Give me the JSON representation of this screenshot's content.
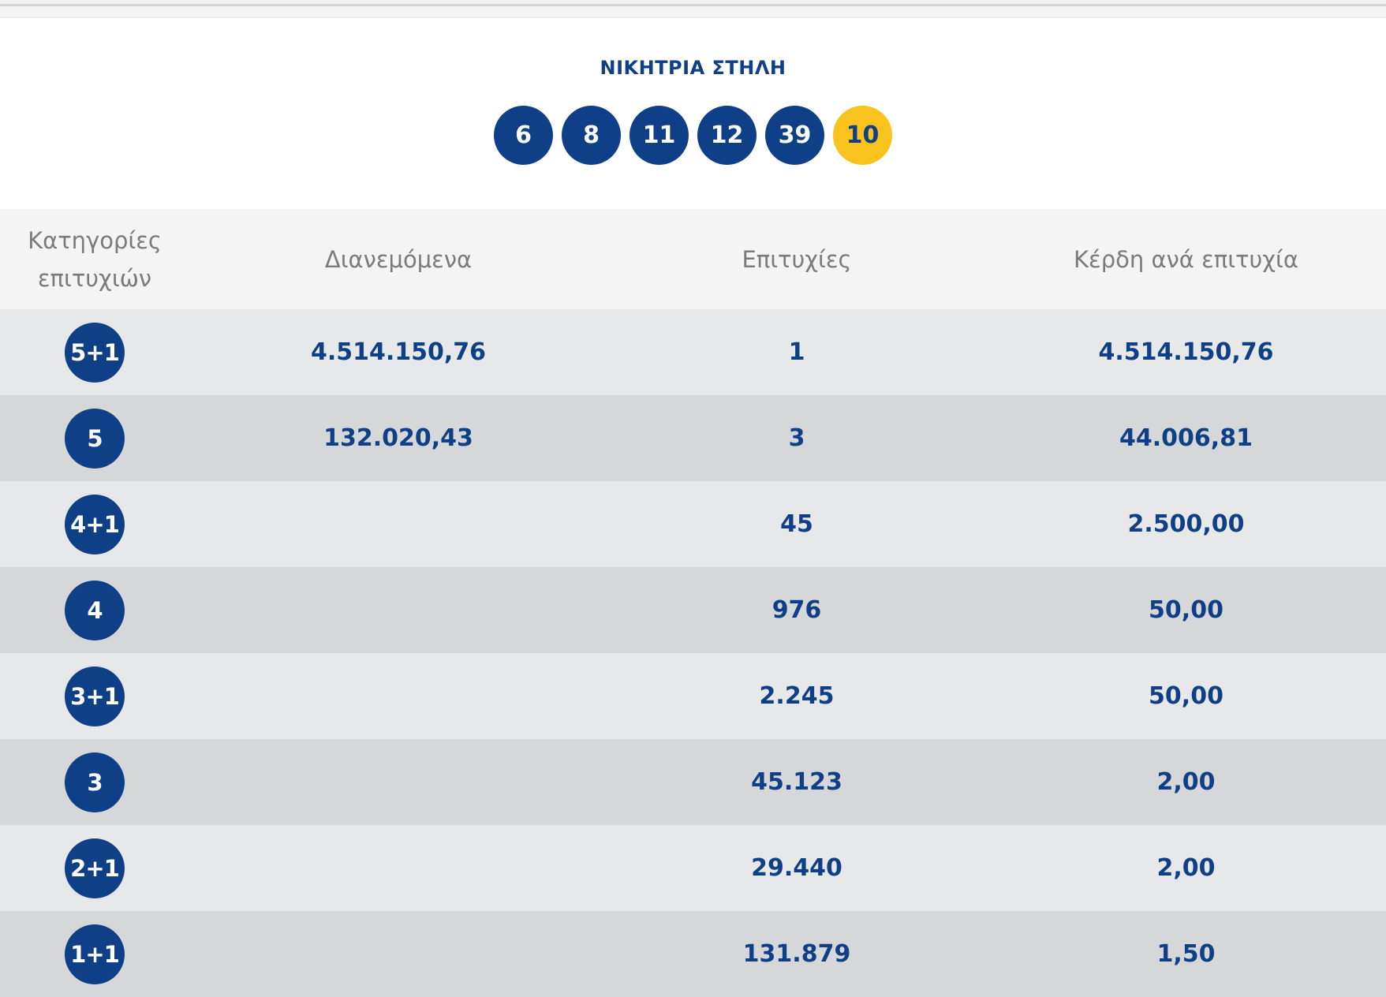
{
  "winning_column": {
    "title": "ΝΙΚΗΤΡΙΑ ΣΤΗΛΗ",
    "numbers": [
      "6",
      "8",
      "11",
      "12",
      "39"
    ],
    "joker": "10"
  },
  "table": {
    "headers": {
      "category": "Κατηγορίες επιτυχιών",
      "distributed": "Διανεμόμενα",
      "winners": "Επιτυχίες",
      "prize_per_winner": "Κέρδη ανά επιτυχία"
    },
    "rows": [
      {
        "category": "5+1",
        "distributed": "4.514.150,76",
        "winners": "1",
        "prize": "4.514.150,76"
      },
      {
        "category": "5",
        "distributed": "132.020,43",
        "winners": "3",
        "prize": "44.006,81"
      },
      {
        "category": "4+1",
        "distributed": "",
        "winners": "45",
        "prize": "2.500,00"
      },
      {
        "category": "4",
        "distributed": "",
        "winners": "976",
        "prize": "50,00"
      },
      {
        "category": "3+1",
        "distributed": "",
        "winners": "2.245",
        "prize": "50,00"
      },
      {
        "category": "3",
        "distributed": "",
        "winners": "45.123",
        "prize": "2,00"
      },
      {
        "category": "2+1",
        "distributed": "",
        "winners": "29.440",
        "prize": "2,00"
      },
      {
        "category": "1+1",
        "distributed": "",
        "winners": "131.879",
        "prize": "1,50"
      }
    ]
  },
  "colors": {
    "primary": "#0f3f87",
    "joker": "#f9c21c",
    "header_bg": "#f4f4f4",
    "row_light": "#e7e8ea",
    "row_dark": "#d6d7d9",
    "header_text": "#7b7b7b"
  }
}
